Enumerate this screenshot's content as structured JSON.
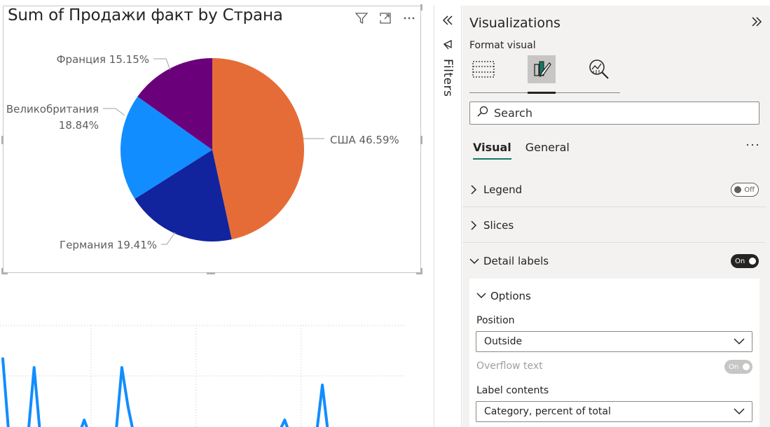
{
  "pie_visual": {
    "title": "Sum of Продажи факт by Страна",
    "header_icons": [
      "filter-icon",
      "focus-mode-icon",
      "more-options-icon"
    ]
  },
  "chart_data": [
    {
      "type": "pie",
      "title": "Sum of Продажи факт by Страна",
      "slices": [
        {
          "label": "США",
          "percent": 46.59,
          "color": "#E66C37",
          "display": "США 46.59%"
        },
        {
          "label": "Германия",
          "percent": 19.41,
          "color": "#12239E",
          "display": "Германия 19.41%"
        },
        {
          "label": "Великобритания",
          "percent": 18.84,
          "color": "#118DFF",
          "display_lines": [
            "Великобритания",
            "18.84%"
          ]
        },
        {
          "label": "Франция",
          "percent": 15.15,
          "color": "#6B007B",
          "display": "Франция 15.15%"
        }
      ]
    },
    {
      "type": "line",
      "color": "#118DFF",
      "grid": true,
      "values": [
        0.9,
        0.0,
        0.0,
        0.0,
        0.0,
        0.8,
        0.0,
        0.0,
        0.0,
        0.0,
        0.0,
        0.0,
        0.0,
        0.2,
        0.0,
        0.0,
        0.0,
        0.0,
        0.0,
        0.8,
        0.35,
        0.0,
        0.0,
        0.0,
        0.0,
        0.0,
        0.0,
        0.0,
        0.0,
        0.0,
        0.0,
        0.0,
        0.0,
        0.0,
        0.05,
        0.0,
        0.0,
        0.0,
        0.0,
        0.0,
        0.0,
        0.0,
        0.0,
        0.0,
        0.05,
        0.2,
        0.0,
        0.0,
        0.0,
        0.0,
        0.0,
        0.6,
        0.0
      ]
    }
  ],
  "filters_pane": {
    "label": "Filters"
  },
  "viz_pane": {
    "title": "Visualizations",
    "format_label": "Format visual",
    "type_icons": [
      "build-visual-icon",
      "format-visual-icon",
      "analytics-icon"
    ],
    "search_placeholder": "Search",
    "tabs": [
      {
        "label": "Visual",
        "active": true
      },
      {
        "label": "General",
        "active": false
      }
    ],
    "more": "···",
    "cards": [
      {
        "label": "Legend",
        "toggle": "Off"
      },
      {
        "label": "Slices"
      },
      {
        "label": "Detail labels",
        "toggle": "On"
      }
    ],
    "options": {
      "header": "Options",
      "position_label": "Position",
      "position_value": "Outside",
      "overflow_label": "Overflow text",
      "overflow_toggle": "On",
      "label_contents_label": "Label contents",
      "label_contents_value": "Category, percent of total"
    }
  }
}
